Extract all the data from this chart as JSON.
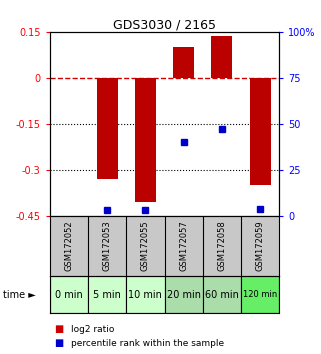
{
  "title": "GDS3030 / 2165",
  "samples": [
    "GSM172052",
    "GSM172053",
    "GSM172055",
    "GSM172057",
    "GSM172058",
    "GSM172059"
  ],
  "time_labels": [
    "0 min",
    "5 min",
    "10 min",
    "20 min",
    "60 min",
    "120 min"
  ],
  "log2_ratio": [
    0.0,
    -0.33,
    -0.405,
    0.1,
    0.135,
    -0.35
  ],
  "percentile_rank": [
    null,
    3.0,
    3.0,
    40.0,
    47.0,
    3.5
  ],
  "ylim_left": [
    -0.45,
    0.15
  ],
  "ylim_right": [
    0,
    100
  ],
  "yticks_left": [
    0.15,
    0.0,
    -0.15,
    -0.3,
    -0.45
  ],
  "yticks_right": [
    100,
    75,
    50,
    25,
    0
  ],
  "bar_color": "#bb0000",
  "dot_color": "#0000cc",
  "dashed_line_color": "#cc0000",
  "grid_color": "#000000",
  "bg_plot": "#ffffff",
  "bg_sample_gray": "#c8c8c8",
  "time_bg_colors": [
    "#ccffcc",
    "#ccffcc",
    "#ccffcc",
    "#aaddaa",
    "#aaddaa",
    "#66ee66"
  ],
  "legend_log2_color": "#cc0000",
  "legend_pct_color": "#0000cc"
}
